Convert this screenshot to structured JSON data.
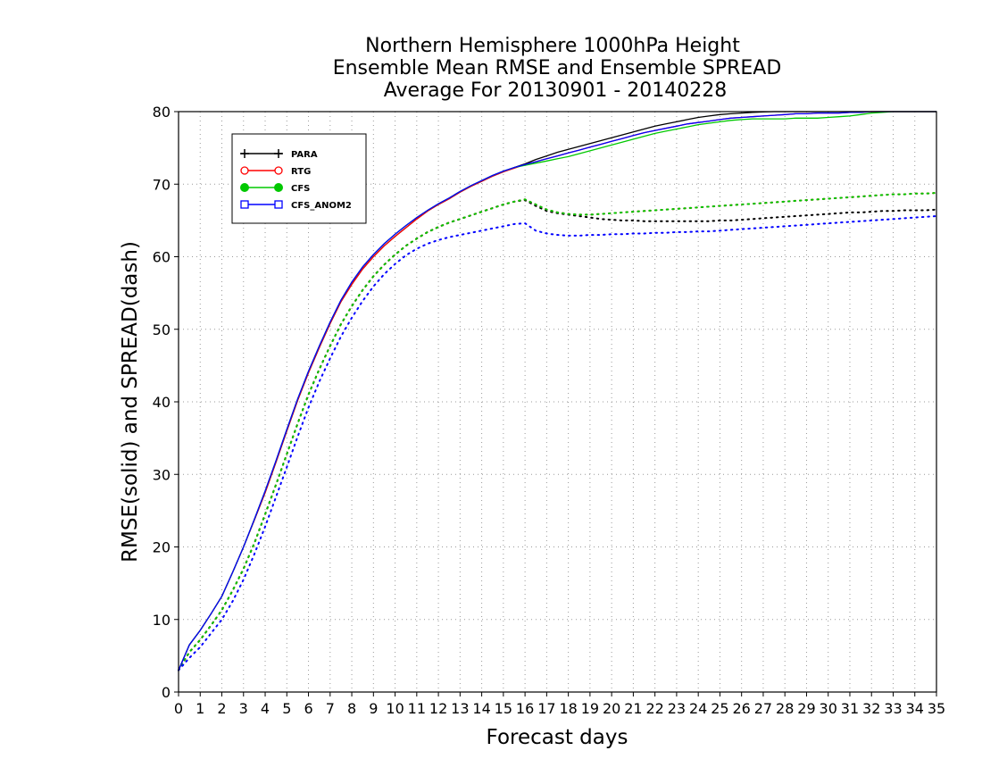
{
  "chart_data": {
    "type": "line",
    "title": [
      "Northern Hemisphere 1000hPa Height",
      "Ensemble Mean RMSE and Ensemble SPREAD",
      "Average For 20130901 - 20140228"
    ],
    "xlabel": "Forecast days",
    "ylabel": "RMSE(solid) and SPREAD(dash)",
    "xlim": [
      0,
      35
    ],
    "ylim": [
      0,
      80
    ],
    "xticks": [
      0,
      1,
      2,
      3,
      4,
      5,
      6,
      7,
      8,
      9,
      10,
      11,
      12,
      13,
      14,
      15,
      16,
      17,
      18,
      19,
      20,
      21,
      22,
      23,
      24,
      25,
      26,
      27,
      28,
      29,
      30,
      31,
      32,
      33,
      34,
      35
    ],
    "yticks": [
      0,
      10,
      20,
      30,
      40,
      50,
      60,
      70,
      80
    ],
    "grid": true,
    "legend_position": "top-left",
    "x": [
      0,
      0.5,
      1,
      1.5,
      2,
      2.5,
      3,
      3.5,
      4,
      4.5,
      5,
      5.5,
      6,
      6.5,
      7,
      7.5,
      8,
      8.5,
      9,
      9.5,
      10,
      10.5,
      11,
      11.5,
      12,
      12.5,
      13,
      13.5,
      14,
      14.5,
      15,
      15.5,
      16,
      16.5,
      17,
      17.5,
      18,
      18.5,
      19,
      19.5,
      20,
      20.5,
      21,
      21.5,
      22,
      22.5,
      23,
      23.5,
      24,
      24.5,
      25,
      25.5,
      26,
      26.5,
      27,
      27.5,
      28,
      28.5,
      29,
      29.5,
      30,
      30.5,
      31,
      31.5,
      32,
      32.5,
      33,
      33.5,
      34,
      34.5,
      35
    ],
    "series": [
      {
        "name": "PARA",
        "color": "#000000",
        "marker": "plus",
        "rmse": [
          3,
          6.5,
          8.5,
          10.8,
          13.2,
          16.5,
          20,
          23.7,
          27.5,
          31.7,
          36,
          40.2,
          44,
          47.5,
          50.8,
          53.8,
          56.2,
          58.3,
          60,
          61.5,
          62.8,
          64,
          65.2,
          66.3,
          67.2,
          68,
          68.9,
          69.7,
          70.4,
          71.1,
          71.7,
          72.3,
          72.8,
          73.4,
          73.9,
          74.4,
          74.8,
          75.2,
          75.6,
          76,
          76.4,
          76.8,
          77.2,
          77.6,
          78,
          78.3,
          78.6,
          78.9,
          79.2,
          79.4,
          79.6,
          79.7,
          79.8,
          79.9,
          79.95,
          80,
          80,
          80,
          80,
          80,
          80,
          80,
          80,
          80,
          80,
          80,
          80,
          80,
          80,
          80,
          80
        ],
        "spread": [
          3,
          5.5,
          7.2,
          9.2,
          11.3,
          14,
          17,
          20.5,
          24.5,
          28.6,
          32.8,
          37,
          41,
          44.5,
          47.7,
          50.7,
          53.2,
          55.4,
          57.3,
          58.9,
          60.3,
          61.5,
          62.5,
          63.4,
          64.1,
          64.7,
          65.2,
          65.7,
          66.2,
          66.7,
          67.2,
          67.6,
          67.8,
          67,
          66.3,
          66,
          65.8,
          65.6,
          65.4,
          65.2,
          65.1,
          65,
          65,
          64.9,
          64.9,
          64.9,
          64.9,
          64.9,
          64.9,
          64.9,
          65,
          65,
          65.1,
          65.2,
          65.3,
          65.4,
          65.5,
          65.6,
          65.7,
          65.8,
          65.9,
          66,
          66.1,
          66.1,
          66.2,
          66.3,
          66.3,
          66.4,
          66.4,
          66.4,
          66.5
        ]
      },
      {
        "name": "RTG",
        "color": "#ff0000",
        "marker": "open-circle",
        "rmse": [
          3,
          6.5,
          8.5,
          10.8,
          13.2,
          16.5,
          20,
          23.7,
          27.5,
          31.7,
          36,
          40.2,
          44,
          47.5,
          50.8,
          53.8,
          56.2,
          58.3,
          60,
          61.5,
          62.8,
          64,
          65.2,
          66.3,
          67.2,
          68,
          68.9,
          69.7,
          70.4,
          71.1,
          71.7,
          72.2,
          72.7,
          73.1,
          73.5,
          73.9,
          74.3,
          74.7,
          75.1,
          75.5,
          75.9,
          76.3,
          76.7,
          77.1,
          77.4,
          77.7,
          78,
          78.3,
          78.5,
          78.7,
          78.9,
          79.1,
          79.2,
          79.3,
          79.4,
          79.5,
          79.6,
          79.7,
          79.7,
          79.8,
          79.8,
          79.8,
          79.9,
          79.9,
          80,
          80,
          80,
          80,
          80,
          80,
          80
        ],
        "spread": [
          3,
          5.5,
          7.2,
          9.2,
          11.3,
          14,
          17,
          20.5,
          24.5,
          28.6,
          32.8,
          37,
          41,
          44.5,
          47.7,
          50.7,
          53.2,
          55.4,
          57.3,
          58.9,
          60.3,
          61.5,
          62.5,
          63.4,
          64.1,
          64.7,
          65.2,
          65.7,
          66.2,
          66.7,
          67.2,
          67.6,
          67.9,
          67.2,
          66.5,
          66.1,
          65.9,
          65.8,
          65.8,
          65.9,
          66,
          66.1,
          66.2,
          66.3,
          66.4,
          66.5,
          66.6,
          66.7,
          66.8,
          66.9,
          67,
          67.1,
          67.2,
          67.3,
          67.4,
          67.5,
          67.6,
          67.7,
          67.8,
          67.9,
          68,
          68.1,
          68.2,
          68.3,
          68.4,
          68.5,
          68.6,
          68.6,
          68.7,
          68.7,
          68.8
        ]
      },
      {
        "name": "CFS",
        "color": "#00c800",
        "marker": "filled-circle",
        "rmse": [
          3,
          6.5,
          8.5,
          10.8,
          13.2,
          16.5,
          20,
          23.8,
          27.7,
          31.9,
          36.2,
          40.4,
          44.2,
          47.7,
          51,
          54,
          56.5,
          58.6,
          60.3,
          61.8,
          63.1,
          64.3,
          65.4,
          66.4,
          67.3,
          68.1,
          69,
          69.8,
          70.5,
          71.2,
          71.8,
          72.3,
          72.6,
          72.9,
          73.2,
          73.5,
          73.8,
          74.2,
          74.6,
          75,
          75.4,
          75.8,
          76.2,
          76.6,
          77,
          77.3,
          77.6,
          77.9,
          78.2,
          78.4,
          78.6,
          78.8,
          78.9,
          79,
          79,
          79,
          79,
          79.1,
          79.1,
          79.1,
          79.2,
          79.3,
          79.4,
          79.6,
          79.8,
          79.9,
          80,
          80,
          80,
          80,
          80
        ],
        "spread": [
          3,
          5.5,
          7.2,
          9.2,
          11.3,
          14,
          17,
          20.5,
          24.5,
          28.6,
          32.8,
          37,
          41,
          44.5,
          47.7,
          50.7,
          53.2,
          55.4,
          57.3,
          58.9,
          60.3,
          61.5,
          62.5,
          63.4,
          64.1,
          64.7,
          65.2,
          65.7,
          66.2,
          66.7,
          67.2,
          67.6,
          67.9,
          67.2,
          66.5,
          66.1,
          65.9,
          65.8,
          65.8,
          65.9,
          66,
          66.1,
          66.2,
          66.3,
          66.4,
          66.5,
          66.6,
          66.7,
          66.8,
          66.9,
          67,
          67.1,
          67.2,
          67.3,
          67.4,
          67.5,
          67.6,
          67.7,
          67.8,
          67.9,
          68,
          68.1,
          68.2,
          68.3,
          68.4,
          68.5,
          68.6,
          68.6,
          68.7,
          68.7,
          68.8
        ]
      },
      {
        "name": "CFS_ANOM2",
        "color": "#0000ff",
        "marker": "open-square",
        "rmse": [
          3,
          6.5,
          8.5,
          10.8,
          13.2,
          16.5,
          20,
          23.8,
          27.7,
          31.9,
          36.2,
          40.4,
          44.2,
          47.7,
          51,
          54,
          56.5,
          58.6,
          60.3,
          61.8,
          63.1,
          64.3,
          65.4,
          66.4,
          67.3,
          68.1,
          69,
          69.8,
          70.5,
          71.2,
          71.8,
          72.3,
          72.7,
          73.1,
          73.5,
          73.9,
          74.3,
          74.7,
          75.1,
          75.5,
          75.9,
          76.3,
          76.7,
          77.1,
          77.4,
          77.7,
          78,
          78.3,
          78.5,
          78.7,
          78.9,
          79.1,
          79.2,
          79.3,
          79.4,
          79.5,
          79.6,
          79.7,
          79.7,
          79.8,
          79.8,
          79.8,
          79.9,
          79.9,
          80,
          80,
          80,
          80,
          80,
          80,
          80
        ],
        "spread": [
          3,
          4.7,
          6.2,
          8.1,
          10,
          12.5,
          15.5,
          19,
          22.8,
          26.9,
          31,
          35.2,
          39.2,
          42.8,
          46,
          49,
          51.6,
          53.9,
          55.9,
          57.6,
          59,
          60.2,
          61.1,
          61.8,
          62.3,
          62.7,
          63,
          63.3,
          63.6,
          63.9,
          64.2,
          64.5,
          64.6,
          63.6,
          63.2,
          63,
          62.9,
          62.9,
          63,
          63,
          63.1,
          63.1,
          63.2,
          63.2,
          63.3,
          63.3,
          63.4,
          63.4,
          63.5,
          63.5,
          63.6,
          63.7,
          63.8,
          63.9,
          64,
          64.1,
          64.2,
          64.3,
          64.4,
          64.5,
          64.6,
          64.7,
          64.8,
          64.9,
          65,
          65.1,
          65.2,
          65.3,
          65.4,
          65.5,
          65.6
        ]
      }
    ]
  }
}
